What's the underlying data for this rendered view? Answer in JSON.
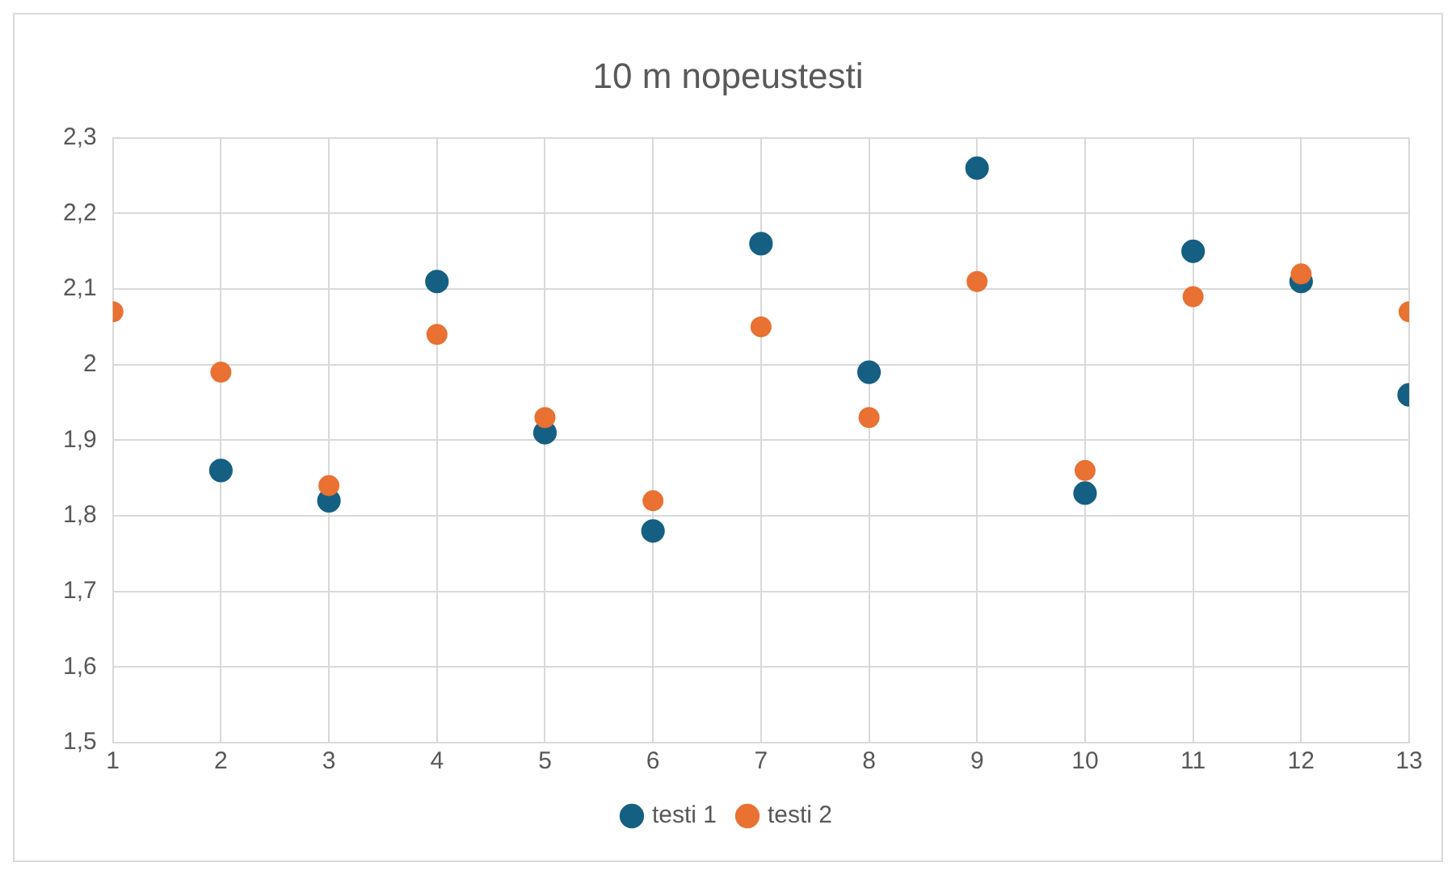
{
  "chart_data": {
    "type": "scatter",
    "title": "10 m nopeustesti",
    "x": [
      1,
      2,
      3,
      4,
      5,
      6,
      7,
      8,
      9,
      10,
      11,
      12,
      13
    ],
    "series": [
      {
        "name": "testi 1",
        "color": "#156082",
        "values": [
          null,
          1.86,
          1.82,
          2.11,
          1.91,
          1.78,
          2.16,
          1.99,
          2.26,
          1.83,
          2.15,
          2.11,
          1.96
        ]
      },
      {
        "name": "testi 2",
        "color": "#e97132",
        "values": [
          2.07,
          1.99,
          1.84,
          2.04,
          1.93,
          1.82,
          2.05,
          1.93,
          2.11,
          1.86,
          2.09,
          2.12,
          2.07
        ]
      }
    ],
    "xlim": [
      1,
      13
    ],
    "xticks": [
      1,
      2,
      3,
      4,
      5,
      6,
      7,
      8,
      9,
      10,
      11,
      12,
      13
    ],
    "ylim": [
      1.5,
      2.3
    ],
    "yticks": [
      {
        "value": 1.5,
        "label": "1,5"
      },
      {
        "value": 1.6,
        "label": "1,6"
      },
      {
        "value": 1.7,
        "label": "1,7"
      },
      {
        "value": 1.8,
        "label": "1,8"
      },
      {
        "value": 1.9,
        "label": "1,9"
      },
      {
        "value": 2,
        "label": "2"
      },
      {
        "value": 2.1,
        "label": "2,1"
      },
      {
        "value": 2.2,
        "label": "2,2"
      },
      {
        "value": 2.3,
        "label": "2,3"
      }
    ],
    "grid": true,
    "legend": "bottom",
    "marker": "circle"
  }
}
